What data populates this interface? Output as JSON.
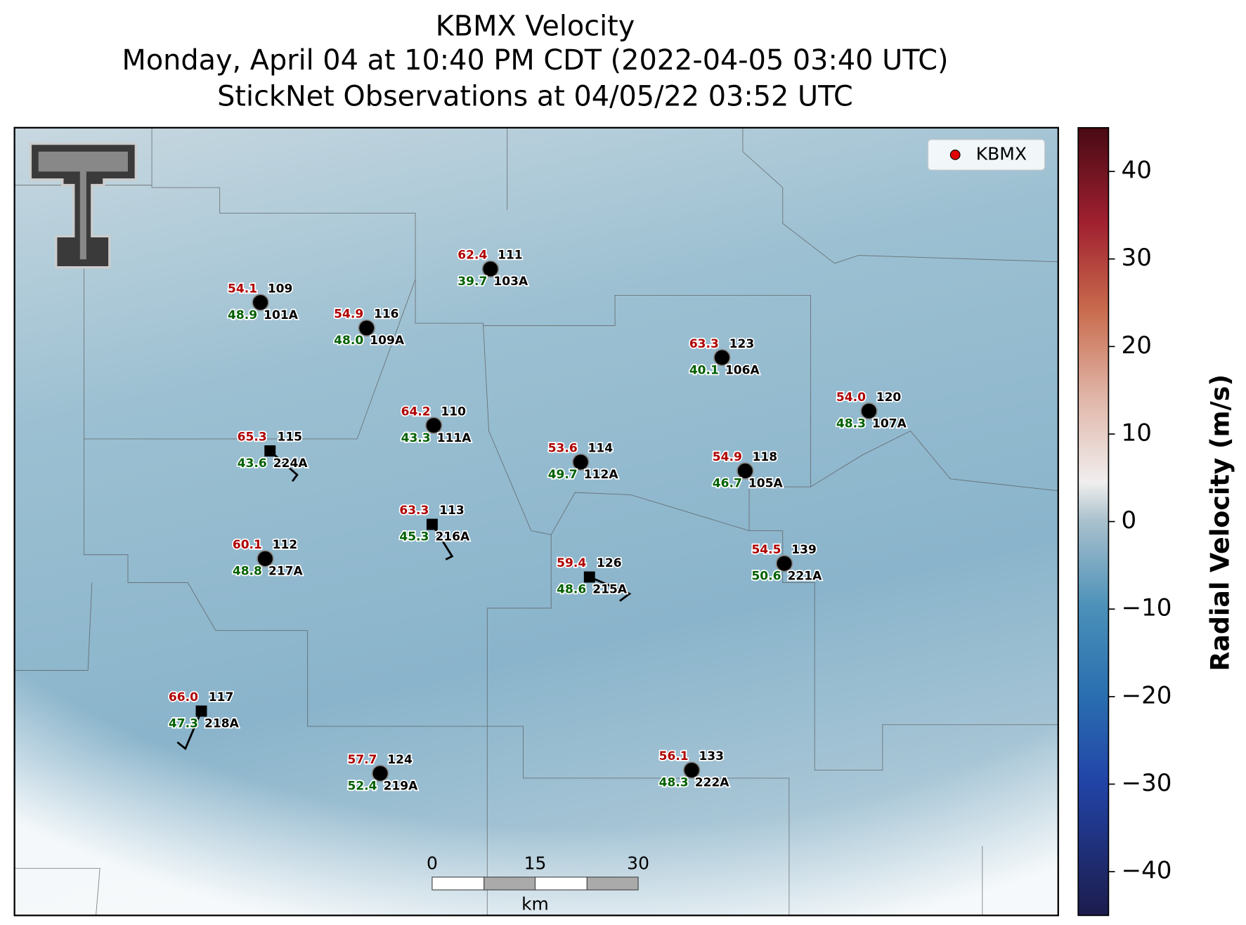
{
  "title": [
    "KBMX Velocity",
    "Monday, April 04 at 10:40 PM CDT (2022-04-05 03:40 UTC)",
    "StickNet Observations at 04/05/22 03:52 UTC"
  ],
  "legend": {
    "label": "KBMX",
    "color": "#e00000"
  },
  "stations": [
    {
      "red": "54.1",
      "num": "109",
      "green": "48.9",
      "id": "101A",
      "marker": "circle"
    },
    {
      "red": "54.9",
      "num": "116",
      "green": "48.0",
      "id": "109A",
      "marker": "circle"
    },
    {
      "red": "62.4",
      "num": "111",
      "green": "39.7",
      "id": "103A",
      "marker": "circle"
    },
    {
      "red": "63.3",
      "num": "123",
      "green": "40.1",
      "id": "106A",
      "marker": "circle"
    },
    {
      "red": "54.0",
      "num": "120",
      "green": "48.3",
      "id": "107A",
      "marker": "circle"
    },
    {
      "red": "64.2",
      "num": "110",
      "green": "43.3",
      "id": "111A",
      "marker": "circle"
    },
    {
      "red": "65.3",
      "num": "115",
      "green": "43.6",
      "id": "224A",
      "marker": "square"
    },
    {
      "red": "53.6",
      "num": "114",
      "green": "49.7",
      "id": "112A",
      "marker": "circle"
    },
    {
      "red": "54.9",
      "num": "118",
      "green": "46.7",
      "id": "105A",
      "marker": "circle"
    },
    {
      "red": "63.3",
      "num": "113",
      "green": "45.3",
      "id": "216A",
      "marker": "square"
    },
    {
      "red": "60.1",
      "num": "112",
      "green": "48.8",
      "id": "217A",
      "marker": "circle"
    },
    {
      "red": "54.5",
      "num": "139",
      "green": "50.6",
      "id": "221A",
      "marker": "circle"
    },
    {
      "red": "59.4",
      "num": "126",
      "green": "48.6",
      "id": "215A",
      "marker": "square"
    },
    {
      "red": "66.0",
      "num": "117",
      "green": "47.3",
      "id": "218A",
      "marker": "square"
    },
    {
      "red": "57.7",
      "num": "124",
      "green": "52.4",
      "id": "219A",
      "marker": "circle"
    },
    {
      "red": "56.1",
      "num": "133",
      "green": "48.3",
      "id": "222A",
      "marker": "circle"
    }
  ],
  "colorbar": {
    "label": "Radial Velocity (m/s)",
    "lim": [
      -45,
      45
    ],
    "ticks": [
      {
        "value": -40,
        "label": "−40"
      },
      {
        "value": -30,
        "label": "−30"
      },
      {
        "value": -20,
        "label": "−20"
      },
      {
        "value": -10,
        "label": "−10"
      },
      0,
      10,
      20,
      30,
      40
    ]
  },
  "scalebar": {
    "labels": [
      "0",
      "15",
      "30"
    ],
    "unit": "km"
  }
}
